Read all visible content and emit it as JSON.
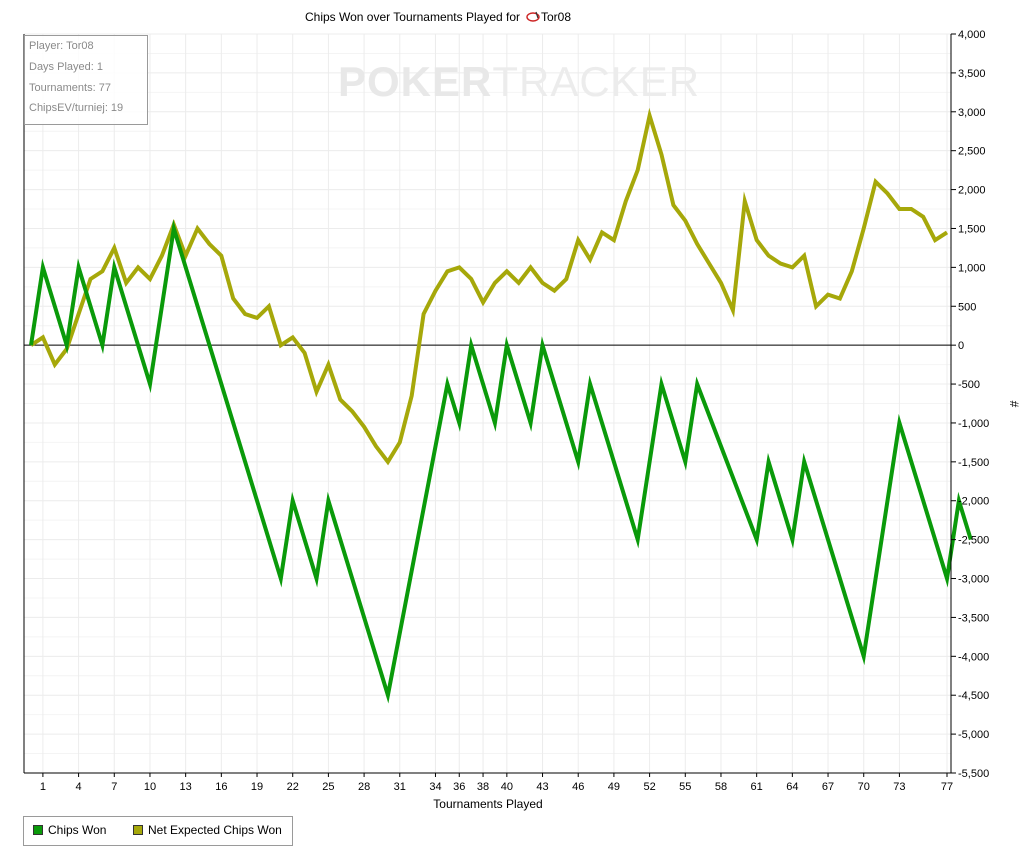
{
  "chart_data": {
    "type": "line",
    "title": "Chips Won over Tournaments Played for",
    "title_player": "Tor08",
    "xlabel": "Tournaments Played",
    "ylabel": "#",
    "ylim": [
      -5500,
      4000
    ],
    "xlim": [
      0,
      77
    ],
    "y_ticks": [
      4000,
      3500,
      3000,
      2500,
      2000,
      1500,
      1000,
      500,
      0,
      -500,
      -1000,
      -1500,
      -2000,
      -2500,
      -3000,
      -3500,
      -4000,
      -4500,
      -5000,
      -5500
    ],
    "y_tick_labels": [
      "4,000",
      "3,500",
      "3,000",
      "2,500",
      "2,000",
      "1,500",
      "1,000",
      "500",
      "0",
      "-500",
      "-1,000",
      "-1,500",
      "-2,000",
      "-2,500",
      "-3,000",
      "-3,500",
      "-4,000",
      "-4,500",
      "-5,000",
      "-5,500"
    ],
    "x_ticks": [
      1,
      4,
      7,
      10,
      13,
      16,
      19,
      22,
      25,
      28,
      31,
      34,
      36,
      38,
      40,
      43,
      46,
      49,
      52,
      55,
      58,
      61,
      64,
      67,
      70,
      73,
      77
    ],
    "x_tick_labels": [
      "1",
      "4",
      "7",
      "10",
      "13",
      "16",
      "19",
      "22",
      "25",
      "28",
      "31",
      "34",
      "36",
      "38",
      "40",
      "43",
      "46",
      "49",
      "52",
      "55",
      "58",
      "61",
      "64",
      "67",
      "70",
      "73",
      "77"
    ],
    "grid": true,
    "legend_placement": "bottom-left",
    "series": [
      {
        "name": "Chips Won",
        "color": "#0a9a0a",
        "points": [
          [
            0,
            0
          ],
          [
            1,
            1000
          ],
          [
            3,
            0
          ],
          [
            4,
            1000
          ],
          [
            6,
            0
          ],
          [
            7,
            1000
          ],
          [
            10,
            -500
          ],
          [
            12,
            1500
          ],
          [
            21,
            -3000
          ],
          [
            22,
            -2000
          ],
          [
            24,
            -3000
          ],
          [
            25,
            -2000
          ],
          [
            30,
            -4500
          ],
          [
            35,
            -500
          ],
          [
            36,
            -1000
          ],
          [
            37,
            0
          ],
          [
            39,
            -1000
          ],
          [
            40,
            0
          ],
          [
            42,
            -1000
          ],
          [
            43,
            0
          ],
          [
            46,
            -1500
          ],
          [
            47,
            -500
          ],
          [
            51,
            -2500
          ],
          [
            53,
            -500
          ],
          [
            55,
            -1500
          ],
          [
            56,
            -500
          ],
          [
            61,
            -2500
          ],
          [
            62,
            -1500
          ],
          [
            64,
            -2500
          ],
          [
            65,
            -1500
          ],
          [
            70,
            -4000
          ],
          [
            73,
            -1000
          ],
          [
            77,
            -3000
          ],
          [
            78,
            -2000
          ],
          [
            79,
            -2500
          ]
        ]
      },
      {
        "name": "Net Expected Chips Won",
        "color": "#a6a80a",
        "points": [
          [
            0,
            0
          ],
          [
            1,
            100
          ],
          [
            2,
            -250
          ],
          [
            3,
            -50
          ],
          [
            4,
            400
          ],
          [
            5,
            850
          ],
          [
            6,
            950
          ],
          [
            7,
            1250
          ],
          [
            8,
            800
          ],
          [
            9,
            1000
          ],
          [
            10,
            850
          ],
          [
            11,
            1150
          ],
          [
            12,
            1550
          ],
          [
            13,
            1150
          ],
          [
            14,
            1500
          ],
          [
            15,
            1300
          ],
          [
            16,
            1150
          ],
          [
            17,
            600
          ],
          [
            18,
            400
          ],
          [
            19,
            350
          ],
          [
            20,
            500
          ],
          [
            21,
            0
          ],
          [
            22,
            100
          ],
          [
            23,
            -100
          ],
          [
            24,
            -600
          ],
          [
            25,
            -250
          ],
          [
            26,
            -700
          ],
          [
            27,
            -850
          ],
          [
            28,
            -1050
          ],
          [
            29,
            -1300
          ],
          [
            30,
            -1500
          ],
          [
            31,
            -1250
          ],
          [
            32,
            -650
          ],
          [
            33,
            400
          ],
          [
            34,
            700
          ],
          [
            35,
            950
          ],
          [
            36,
            1000
          ],
          [
            37,
            850
          ],
          [
            38,
            550
          ],
          [
            39,
            800
          ],
          [
            40,
            950
          ],
          [
            41,
            800
          ],
          [
            42,
            1000
          ],
          [
            43,
            800
          ],
          [
            44,
            700
          ],
          [
            45,
            850
          ],
          [
            46,
            1350
          ],
          [
            47,
            1100
          ],
          [
            48,
            1450
          ],
          [
            49,
            1350
          ],
          [
            50,
            1850
          ],
          [
            51,
            2250
          ],
          [
            52,
            2950
          ],
          [
            53,
            2450
          ],
          [
            54,
            1800
          ],
          [
            55,
            1600
          ],
          [
            56,
            1300
          ],
          [
            57,
            1050
          ],
          [
            58,
            800
          ],
          [
            59,
            450
          ],
          [
            60,
            1850
          ],
          [
            61,
            1350
          ],
          [
            62,
            1150
          ],
          [
            63,
            1050
          ],
          [
            64,
            1000
          ],
          [
            65,
            1150
          ],
          [
            66,
            500
          ],
          [
            67,
            650
          ],
          [
            68,
            600
          ],
          [
            69,
            950
          ],
          [
            70,
            1500
          ],
          [
            71,
            2100
          ],
          [
            72,
            1950
          ],
          [
            73,
            1750
          ],
          [
            74,
            1750
          ],
          [
            75,
            1650
          ],
          [
            76,
            1350
          ],
          [
            77,
            1450
          ]
        ]
      }
    ]
  },
  "info_box": {
    "player": "Player: Tor08",
    "days": "Days Played: 1",
    "tournaments": "Tournaments: 77",
    "chipsev": "ChipsEV/turniej: 19"
  },
  "watermark": {
    "bold": "POKER",
    "thin": "TRACKER"
  },
  "legend": {
    "items": [
      {
        "label": "Chips Won",
        "color": "#0a9a0a"
      },
      {
        "label": "Net Expected Chips Won",
        "color": "#a6a80a"
      }
    ]
  }
}
